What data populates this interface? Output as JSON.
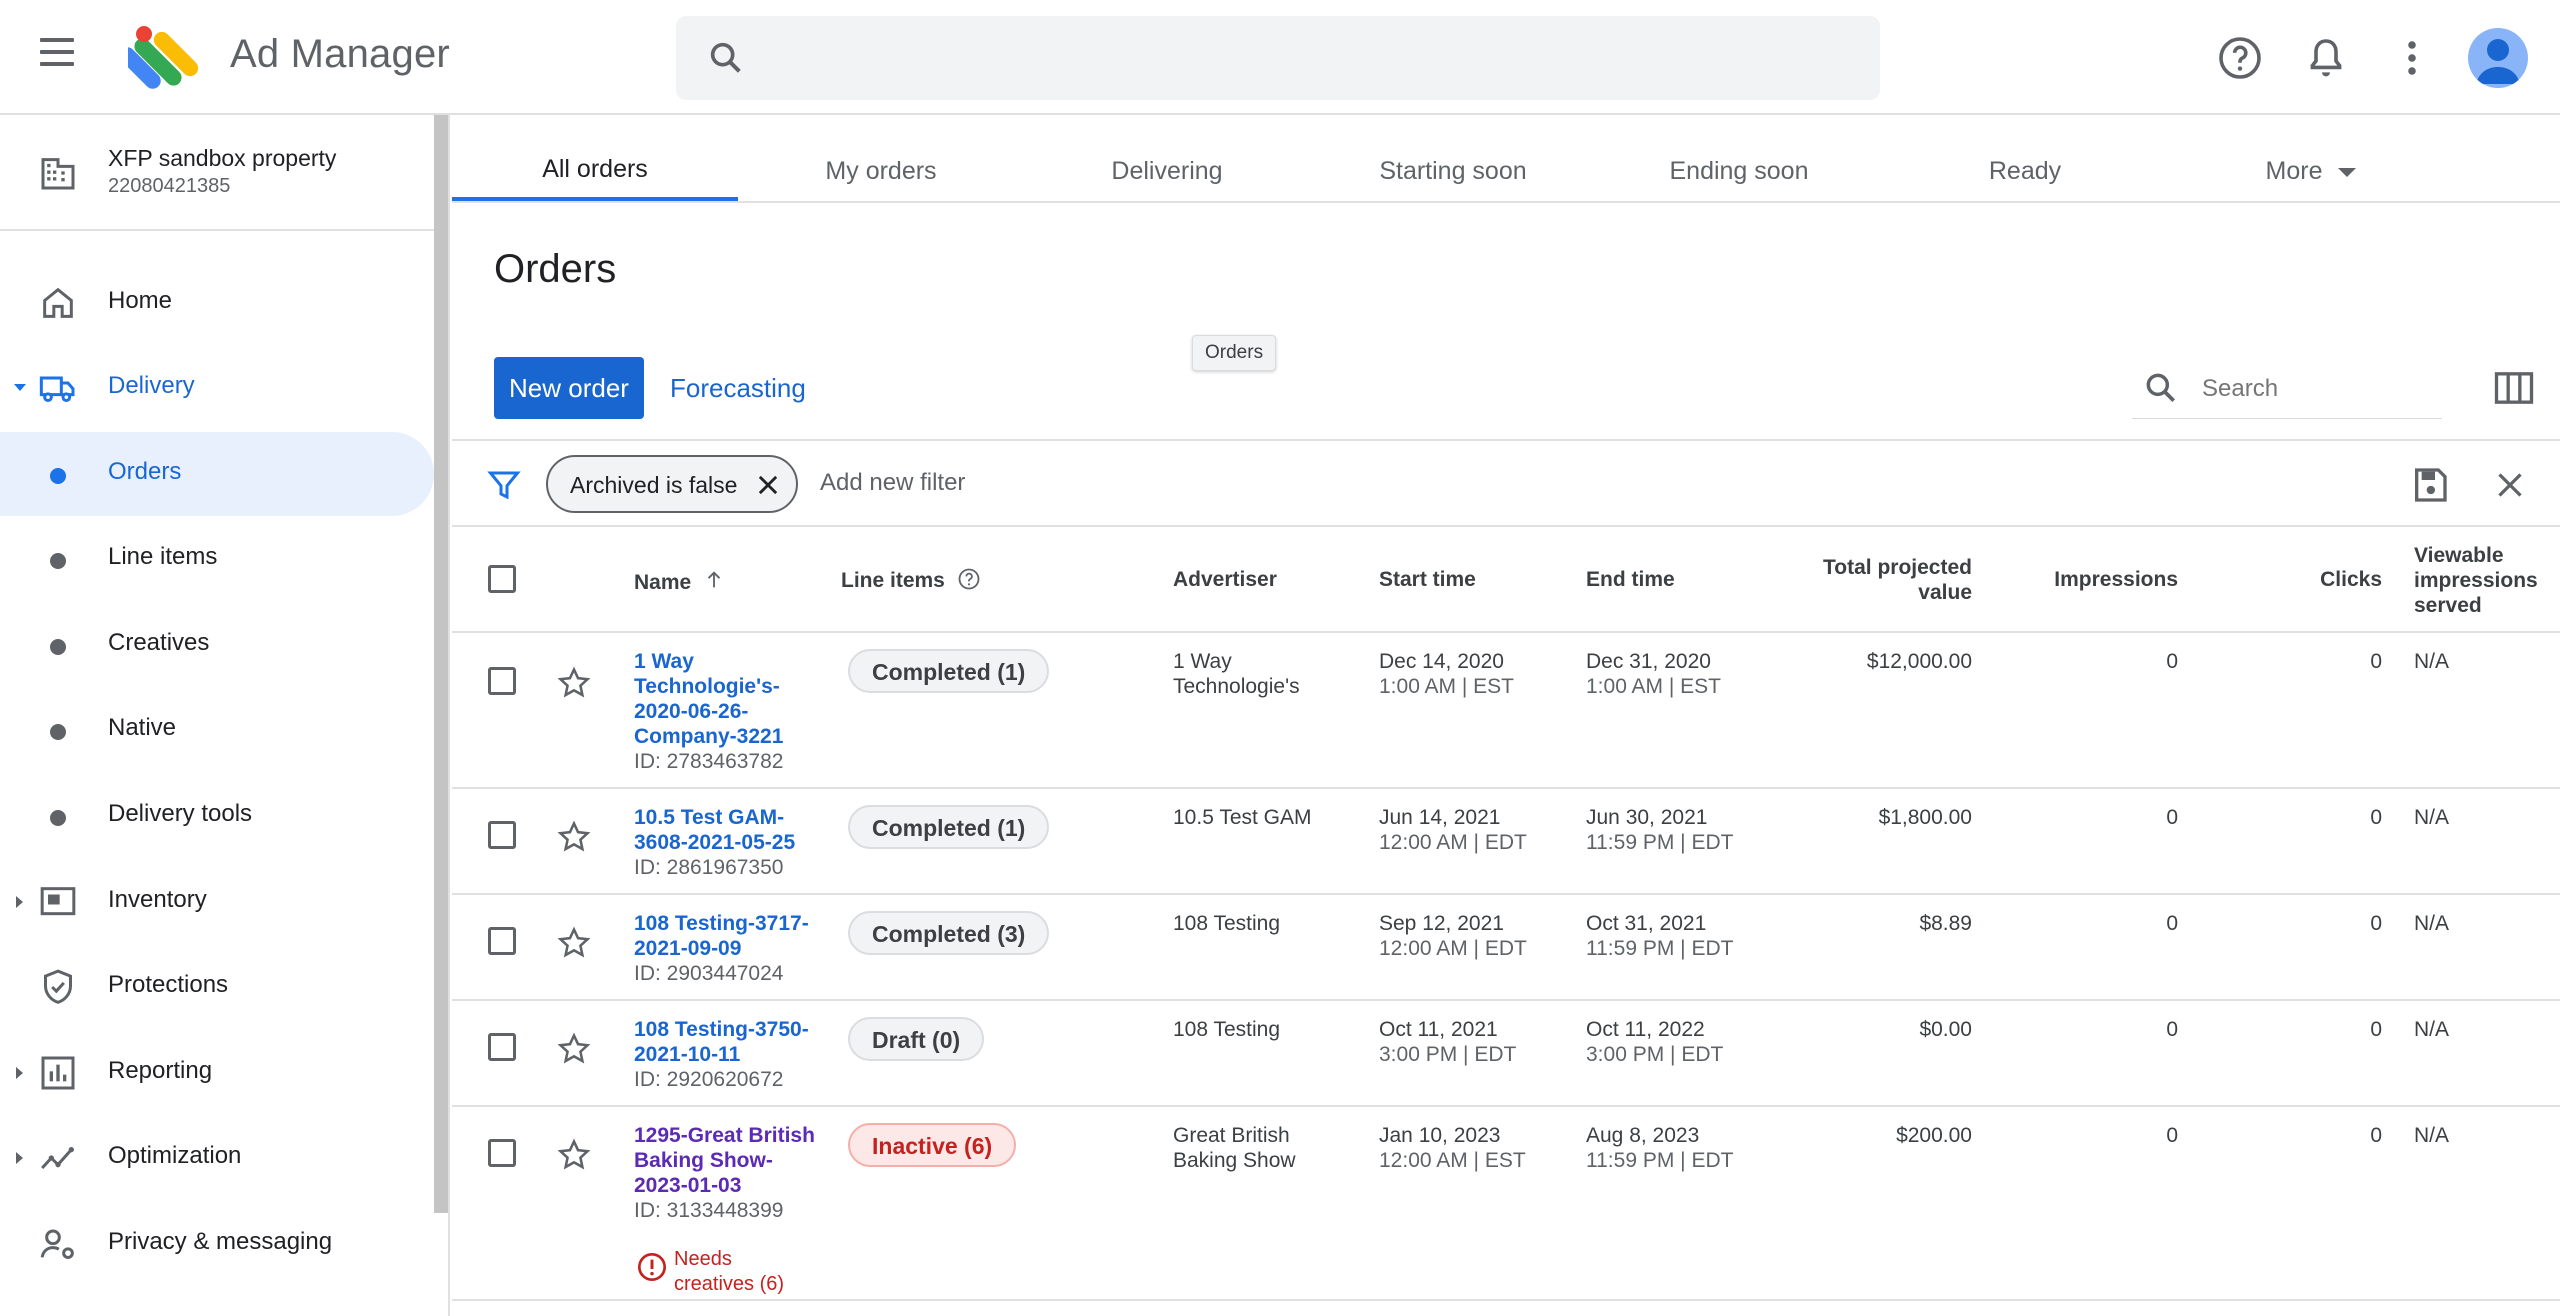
{
  "header": {
    "app_title": "Ad Manager",
    "search_placeholder": ""
  },
  "sidebar": {
    "property_name": "XFP sandbox property",
    "property_id": "22080421385",
    "items": [
      {
        "label": "Home",
        "icon": "home-icon"
      },
      {
        "label": "Delivery",
        "icon": "truck-icon",
        "expanded": true
      },
      {
        "label": "Orders",
        "active": true
      },
      {
        "label": "Line items"
      },
      {
        "label": "Creatives"
      },
      {
        "label": "Native"
      },
      {
        "label": "Delivery tools"
      },
      {
        "label": "Inventory",
        "icon": "inventory-icon"
      },
      {
        "label": "Protections",
        "icon": "shield-icon"
      },
      {
        "label": "Reporting",
        "icon": "bar-chart-icon"
      },
      {
        "label": "Optimization",
        "icon": "trend-icon"
      },
      {
        "label": "Privacy & messaging",
        "icon": "person-settings-icon"
      }
    ]
  },
  "tabs": [
    {
      "label": "All orders",
      "active": true
    },
    {
      "label": "My orders"
    },
    {
      "label": "Delivering"
    },
    {
      "label": "Starting soon"
    },
    {
      "label": "Ending soon"
    },
    {
      "label": "Ready"
    },
    {
      "label": "More"
    }
  ],
  "page": {
    "title": "Orders",
    "tooltip": "Orders",
    "new_order_label": "New order",
    "forecasting_label": "Forecasting",
    "search_placeholder": "Search"
  },
  "filters": {
    "chip_label": "Archived is false",
    "add_filter_label": "Add new filter"
  },
  "table": {
    "columns": {
      "name": "Name",
      "line_items": "Line items",
      "advertiser": "Advertiser",
      "start_time": "Start time",
      "end_time": "End time",
      "total_value_1": "Total projected",
      "total_value_2": "value",
      "impressions": "Impressions",
      "clicks": "Clicks",
      "viewable_1": "Viewable",
      "viewable_2": "impressions",
      "viewable_3": "served"
    },
    "rows": [
      {
        "name_lines": [
          "1 Way",
          "Technologie's-",
          "2020-06-26-",
          "Company-3221"
        ],
        "id": "ID: 2783463782",
        "status": "Completed (1)",
        "advertiser_lines": [
          "1 Way",
          "Technologie's"
        ],
        "start_date": "Dec 14, 2020",
        "start_time": "1:00 AM | EST",
        "end_date": "Dec 31, 2020",
        "end_time": "1:00 AM | EST",
        "value": "$12,000.00",
        "impressions": "0",
        "clicks": "0",
        "viewable": "N/A"
      },
      {
        "name_lines": [
          "10.5 Test GAM-",
          "3608-2021-05-25"
        ],
        "id": "ID: 2861967350",
        "status": "Completed (1)",
        "advertiser_lines": [
          "10.5 Test GAM"
        ],
        "start_date": "Jun 14, 2021",
        "start_time": "12:00 AM | EDT",
        "end_date": "Jun 30, 2021",
        "end_time": "11:59 PM | EDT",
        "value": "$1,800.00",
        "impressions": "0",
        "clicks": "0",
        "viewable": "N/A"
      },
      {
        "name_lines": [
          "108 Testing-3717-",
          "2021-09-09"
        ],
        "id": "ID: 2903447024",
        "status": "Completed (3)",
        "advertiser_lines": [
          "108 Testing"
        ],
        "start_date": "Sep 12, 2021",
        "start_time": "12:00 AM | EDT",
        "end_date": "Oct 31, 2021",
        "end_time": "11:59 PM | EDT",
        "value": "$8.89",
        "impressions": "0",
        "clicks": "0",
        "viewable": "N/A"
      },
      {
        "name_lines": [
          "108 Testing-3750-",
          "2021-10-11"
        ],
        "id": "ID: 2920620672",
        "status": "Draft (0)",
        "advertiser_lines": [
          "108 Testing"
        ],
        "start_date": "Oct 11, 2021",
        "start_time": "3:00 PM | EDT",
        "end_date": "Oct 11, 2022",
        "end_time": "3:00 PM | EDT",
        "value": "$0.00",
        "impressions": "0",
        "clicks": "0",
        "viewable": "N/A"
      },
      {
        "name_lines": [
          "1295-Great British",
          "Baking Show-",
          "2023-01-03"
        ],
        "id": "ID: 3133448399",
        "status": "Inactive (6)",
        "warning_lines": [
          "Needs",
          "creatives (6)"
        ],
        "advertiser_lines": [
          "Great British",
          "Baking Show"
        ],
        "start_date": "Jan 10, 2023",
        "start_time": "12:00 AM | EST",
        "end_date": "Aug 8, 2023",
        "end_time": "11:59 PM | EDT",
        "value": "$200.00",
        "impressions": "0",
        "clicks": "0",
        "viewable": "N/A"
      }
    ]
  },
  "colors": {
    "accent": "#1a73e8",
    "button": "#1a66d0",
    "error": "#c5221f"
  }
}
